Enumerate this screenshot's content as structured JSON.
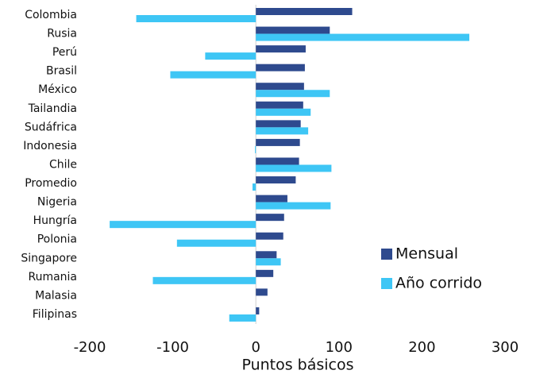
{
  "chart_data": {
    "type": "bar",
    "orientation": "horizontal",
    "x_label": "Puntos básicos",
    "categories": [
      "Colombia",
      "Rusia",
      "Perú",
      "Brasil",
      "México",
      "Tailandia",
      "Sudáfrica",
      "Indonesia",
      "Chile",
      "Promedio",
      "Nigeria",
      "Hungría",
      "Polonia",
      "Singapore",
      "Rumania",
      "Malasia",
      "Filipinas"
    ],
    "series": [
      {
        "name": "Mensual",
        "color": "#2e4a8e",
        "values": [
          116,
          89,
          60,
          59,
          58,
          57,
          54,
          53,
          52,
          48,
          38,
          34,
          33,
          25,
          21,
          14,
          4
        ]
      },
      {
        "name": "Año corrido",
        "color": "#3ec6f5",
        "values": [
          -144,
          257,
          -61,
          -103,
          89,
          66,
          63,
          -1,
          91,
          -4,
          90,
          -176,
          -95,
          30,
          -124,
          0,
          -32
        ]
      }
    ],
    "xlim": [
      -200,
      300
    ],
    "xticks": [
      -200,
      -100,
      0,
      100,
      200,
      300
    ],
    "grid": false
  }
}
